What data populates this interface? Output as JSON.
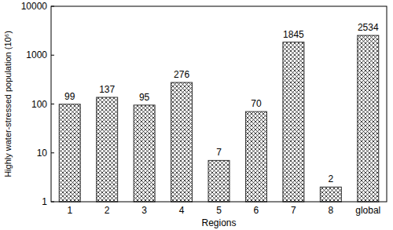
{
  "chart_data": {
    "type": "bar",
    "x_label": "Regions",
    "y_label": "Highly water-stressed population (10⁶)",
    "categories": [
      "1",
      "2",
      "3",
      "4",
      "5",
      "6",
      "7",
      "8",
      "global"
    ],
    "values": [
      99,
      137,
      95,
      276,
      7,
      70,
      1845,
      2,
      2534
    ],
    "color": "#333333",
    "log": "y",
    "ylim": [
      1,
      10000
    ],
    "yticks": [
      1,
      10,
      100,
      1000,
      10000
    ],
    "grid": false,
    "data_labels": true
  }
}
